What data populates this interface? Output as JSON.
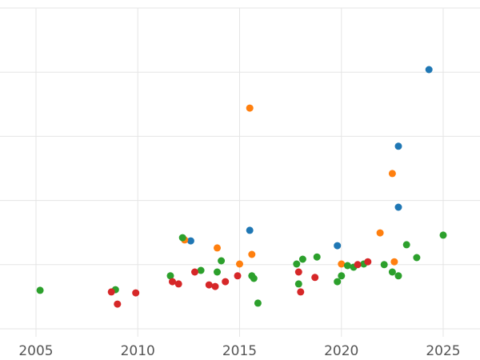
{
  "chart_data": {
    "type": "scatter",
    "title": "",
    "xlabel": "",
    "ylabel": "",
    "xlim": [
      2004.2,
      2026.0
    ],
    "ylim": [
      0,
      100
    ],
    "x_ticks": [
      2005,
      2010,
      2015,
      2020,
      2025
    ],
    "x_tick_labels": [
      "2005",
      "2010",
      "2015",
      "2020",
      "2025"
    ],
    "y_gridline_values": [
      0,
      20,
      40,
      60,
      80,
      100
    ],
    "grid": true,
    "legend_position": "none",
    "colors": {
      "gridline": "#e5e5e5",
      "tick_label": "#555555",
      "background": "#ffffff"
    },
    "series": [
      {
        "name": "blue",
        "color": "#1f77b4",
        "points": [
          [
            2012.6,
            27.4
          ],
          [
            2015.5,
            30.7
          ],
          [
            2019.8,
            25.9
          ],
          [
            2022.8,
            56.9
          ],
          [
            2022.8,
            37.9
          ],
          [
            2024.3,
            80.8
          ]
        ]
      },
      {
        "name": "orange",
        "color": "#ff7f0e",
        "points": [
          [
            2012.3,
            27.7
          ],
          [
            2013.9,
            25.2
          ],
          [
            2015.0,
            20.2
          ],
          [
            2015.5,
            68.8
          ],
          [
            2015.6,
            23.2
          ],
          [
            2020.0,
            20.2
          ],
          [
            2021.9,
            29.9
          ],
          [
            2022.5,
            48.4
          ],
          [
            2022.6,
            20.9
          ]
        ]
      },
      {
        "name": "green",
        "color": "#2ca02c",
        "points": [
          [
            2005.2,
            12.0
          ],
          [
            2008.9,
            12.2
          ],
          [
            2011.6,
            16.5
          ],
          [
            2012.2,
            28.4
          ],
          [
            2013.1,
            18.2
          ],
          [
            2013.9,
            17.7
          ],
          [
            2014.1,
            21.2
          ],
          [
            2015.6,
            16.5
          ],
          [
            2015.7,
            15.7
          ],
          [
            2015.9,
            8.0
          ],
          [
            2017.8,
            20.2
          ],
          [
            2017.9,
            14.0
          ],
          [
            2018.1,
            21.7
          ],
          [
            2018.8,
            22.4
          ],
          [
            2019.8,
            14.7
          ],
          [
            2020.0,
            16.5
          ],
          [
            2020.3,
            19.7
          ],
          [
            2020.6,
            19.2
          ],
          [
            2021.1,
            20.2
          ],
          [
            2022.1,
            20.0
          ],
          [
            2022.5,
            17.7
          ],
          [
            2022.8,
            16.5
          ],
          [
            2023.2,
            26.2
          ],
          [
            2023.7,
            22.2
          ],
          [
            2025.0,
            29.2
          ]
        ]
      },
      {
        "name": "red",
        "color": "#d62728",
        "points": [
          [
            2008.7,
            11.5
          ],
          [
            2009.0,
            7.7
          ],
          [
            2009.9,
            11.2
          ],
          [
            2011.7,
            14.7
          ],
          [
            2012.0,
            14.0
          ],
          [
            2012.8,
            17.7
          ],
          [
            2013.5,
            13.7
          ],
          [
            2013.8,
            13.2
          ],
          [
            2014.3,
            14.7
          ],
          [
            2014.9,
            16.5
          ],
          [
            2017.9,
            17.7
          ],
          [
            2018.0,
            11.5
          ],
          [
            2018.7,
            16.0
          ],
          [
            2020.8,
            20.0
          ],
          [
            2021.3,
            20.9
          ]
        ]
      }
    ]
  }
}
